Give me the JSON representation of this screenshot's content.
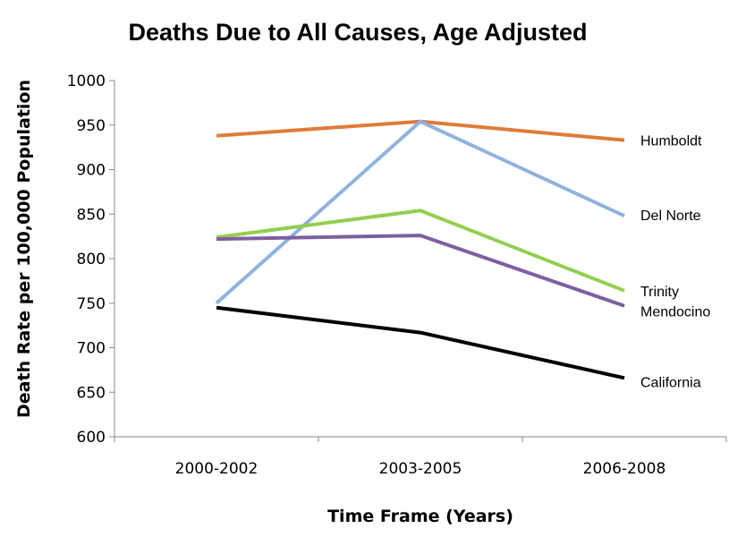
{
  "chart_data": {
    "type": "line",
    "title": "Deaths Due to All Causes, Age Adjusted",
    "xlabel": "Time Frame (Years)",
    "ylabel": "Death Rate per 100,000 Population",
    "categories": [
      "2000-2002",
      "2003-2005",
      "2006-2008"
    ],
    "ylim": [
      600,
      1000
    ],
    "yticks": [
      600,
      650,
      700,
      750,
      800,
      850,
      900,
      950,
      1000
    ],
    "grid": false,
    "legend": "direct labels at right end of lines",
    "series": [
      {
        "name": "Humboldt",
        "values": [
          938,
          954,
          933
        ],
        "color": "#e07b39"
      },
      {
        "name": "Del Norte",
        "values": [
          750,
          954,
          848
        ],
        "color": "#8fb3dc"
      },
      {
        "name": "Trinity",
        "values": [
          824,
          854,
          764
        ],
        "color": "#92d050"
      },
      {
        "name": "Mendocino",
        "values": [
          822,
          826,
          747
        ],
        "color": "#7f5fa0"
      },
      {
        "name": "California",
        "values": [
          745,
          717,
          666
        ],
        "color": "#000000"
      }
    ]
  }
}
